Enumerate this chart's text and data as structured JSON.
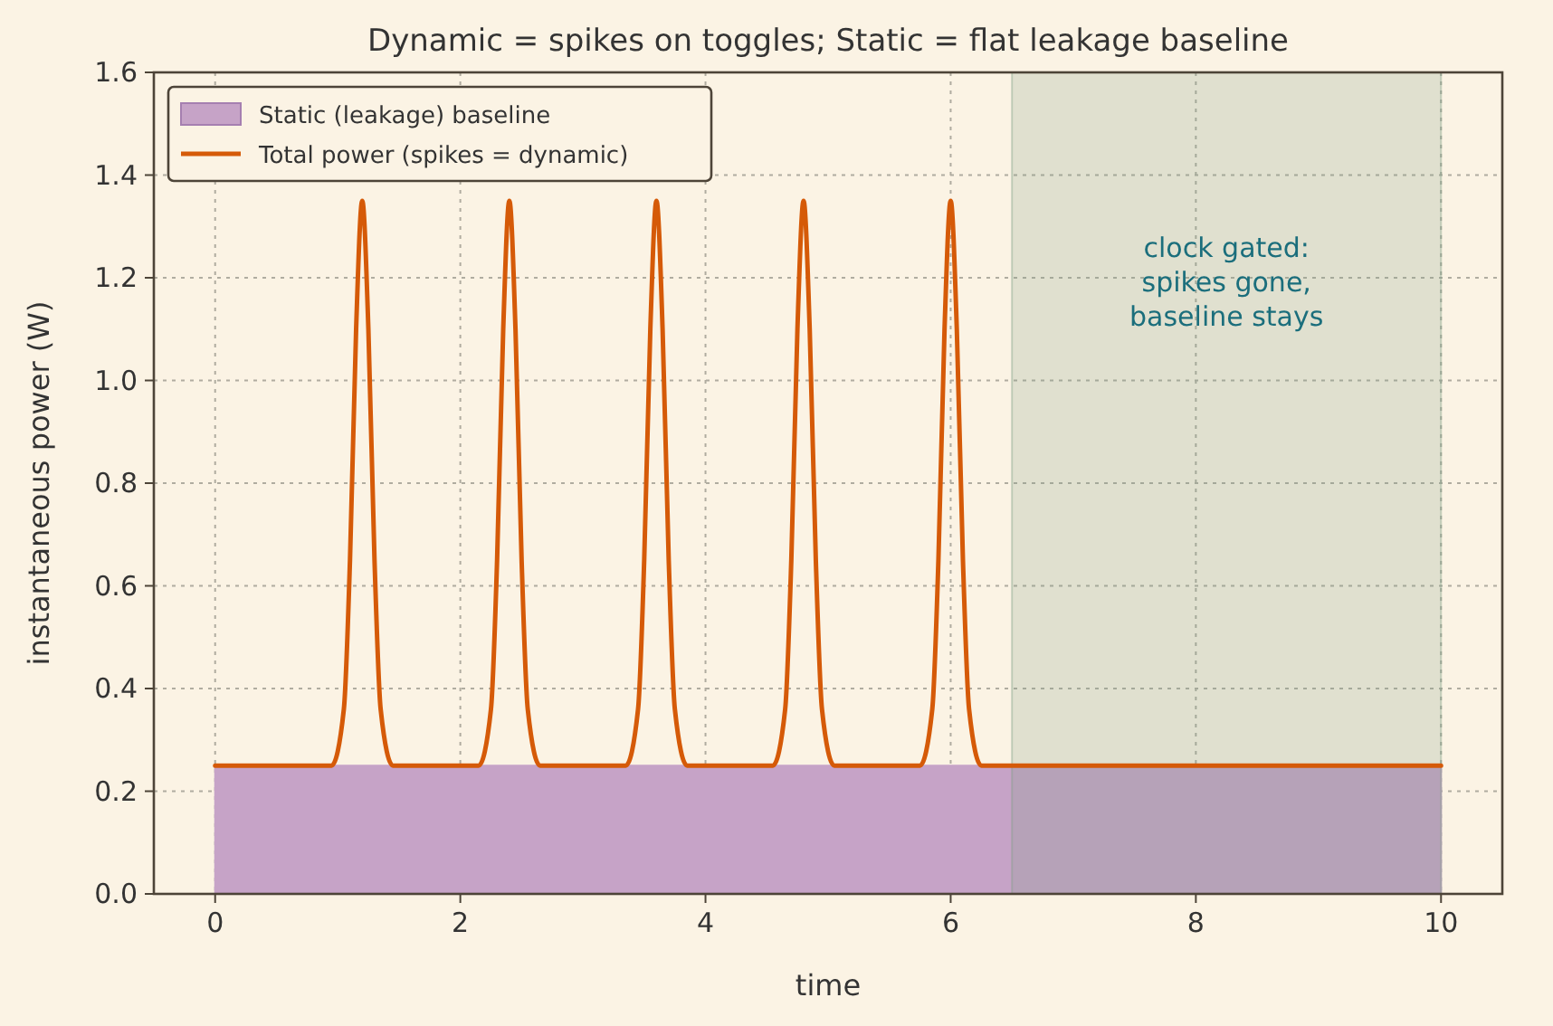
{
  "chart_data": {
    "type": "line",
    "title": "Dynamic = spikes on toggles; Static = flat leakage baseline",
    "xlabel": "time",
    "ylabel": "instantaneous power (W)",
    "series": [
      {
        "type": "area",
        "name": "Static (leakage) baseline",
        "color": "#c6a3c7",
        "x": [
          0,
          10
        ],
        "values": [
          0.25,
          0.25
        ]
      },
      {
        "name": "Total power (spikes = dynamic)",
        "color": "#d55a08",
        "x": [
          0,
          0.95,
          1.05,
          1.1,
          1.15,
          1.2,
          1.25,
          1.3,
          1.35,
          1.45,
          2.15,
          2.25,
          2.3,
          2.35,
          2.4,
          2.45,
          2.5,
          2.55,
          2.65,
          3.35,
          3.45,
          3.5,
          3.55,
          3.6,
          3.65,
          3.7,
          3.75,
          3.85,
          4.55,
          4.65,
          4.7,
          4.75,
          4.8,
          4.85,
          4.9,
          4.95,
          5.05,
          5.75,
          5.85,
          5.9,
          5.95,
          6.0,
          6.05,
          6.1,
          6.15,
          6.25,
          10
        ],
        "values": [
          0.25,
          0.25,
          0.36,
          0.65,
          1.1,
          1.35,
          1.1,
          0.65,
          0.36,
          0.25,
          0.25,
          0.36,
          0.65,
          1.1,
          1.35,
          1.1,
          0.65,
          0.36,
          0.25,
          0.25,
          0.36,
          0.65,
          1.1,
          1.35,
          1.1,
          0.65,
          0.36,
          0.25,
          0.25,
          0.36,
          0.65,
          1.1,
          1.35,
          1.1,
          0.65,
          0.36,
          0.25,
          0.25,
          0.36,
          0.65,
          1.1,
          1.35,
          1.1,
          0.65,
          0.36,
          0.25,
          0.25
        ]
      }
    ],
    "bands": [
      {
        "axis": "x",
        "from": 6.5,
        "to": 10,
        "label": "clock gated:\nspikes gone,\nbaseline stays",
        "color": "#7f9f86"
      }
    ],
    "xlim": [
      -0.5,
      10.5
    ],
    "xticks": [
      0,
      2,
      4,
      6,
      8,
      10
    ],
    "ylim": [
      0,
      1.6
    ],
    "yticks": [
      {
        "value": 0,
        "label": "0.0"
      },
      {
        "value": 0.2,
        "label": "0.2"
      },
      {
        "value": 0.4,
        "label": "0.4"
      },
      {
        "value": 0.6,
        "label": "0.6"
      },
      {
        "value": 0.8,
        "label": "0.8"
      },
      {
        "value": 1.0,
        "label": "1.0"
      },
      {
        "value": 1.2,
        "label": "1.2"
      },
      {
        "value": 1.4,
        "label": "1.4"
      },
      {
        "value": 1.6,
        "label": "1.6"
      }
    ],
    "grid": true,
    "legend": "top left",
    "line_style": "solid",
    "marker": "none"
  }
}
